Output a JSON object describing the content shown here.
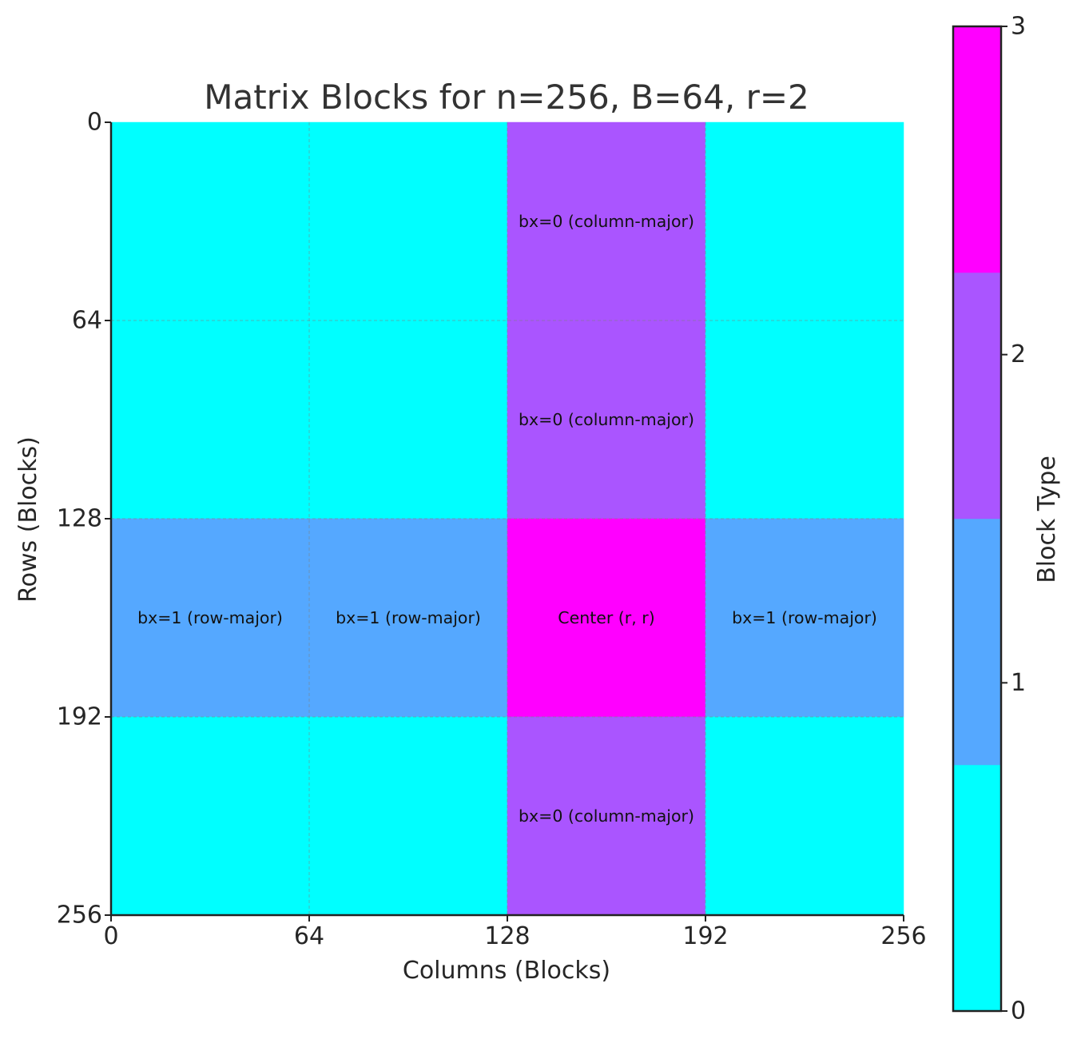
{
  "chart_data": {
    "type": "heatmap",
    "title": "Matrix Blocks for n=256, B=64, r=2",
    "xlabel": "Columns (Blocks)",
    "ylabel": "Rows (Blocks)",
    "xlim": [
      0,
      256
    ],
    "ylim": [
      0,
      256
    ],
    "y_inverted": true,
    "x_ticks": [
      0,
      64,
      128,
      192,
      256
    ],
    "y_ticks": [
      0,
      64,
      128,
      192,
      256
    ],
    "grid": true,
    "block_size": 64,
    "values": [
      [
        0,
        0,
        2,
        0
      ],
      [
        0,
        0,
        2,
        0
      ],
      [
        1,
        1,
        3,
        1
      ],
      [
        0,
        0,
        2,
        0
      ]
    ],
    "cell_labels": [
      [
        "",
        "",
        "bx=0 (column-major)",
        ""
      ],
      [
        "",
        "",
        "bx=0 (column-major)",
        ""
      ],
      [
        "bx=1 (row-major)",
        "bx=1 (row-major)",
        "Center (r, r)",
        "bx=1 (row-major)"
      ],
      [
        "",
        "",
        "bx=0 (column-major)",
        ""
      ]
    ],
    "colormap": [
      "#00ffff",
      "#55a8ff",
      "#aa55ff",
      "#ff00ff"
    ],
    "colorbar": {
      "label": "Block Type",
      "ticks": [
        0,
        1,
        2,
        3
      ],
      "range": [
        0,
        3
      ]
    }
  }
}
